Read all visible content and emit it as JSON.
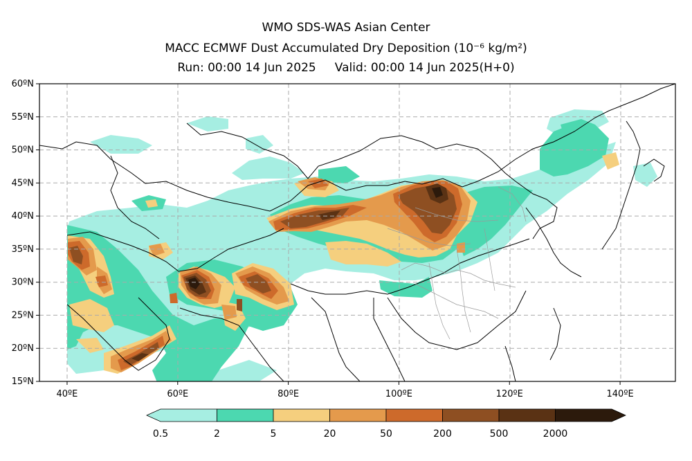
{
  "title": {
    "line1": "WMO SDS-WAS Asian Center",
    "line2": "MACC ECMWF Dust Accumulated Dry Deposition (10⁻⁶ kg/m²)",
    "line3": "Run: 00:00 14 Jun 2025     Valid: 00:00 14 Jun 2025(H+0)"
  },
  "map": {
    "lon_range": [
      35,
      150
    ],
    "lat_range": [
      15,
      60
    ],
    "lat_ticks": [
      "15ºN",
      "20ºN",
      "25ºN",
      "30ºN",
      "35ºN",
      "40ºN",
      "45ºN",
      "50ºN",
      "55ºN",
      "60ºN"
    ],
    "lon_ticks": [
      "40ºE",
      "60ºE",
      "80ºE",
      "100ºE",
      "120ºE",
      "140ºE"
    ],
    "grid": true
  },
  "colorbar": {
    "colors": [
      "#a6eee2",
      "#4cd8b0",
      "#f5cf7e",
      "#e49a4c",
      "#cd6a2b",
      "#8e4f22",
      "#5a3214",
      "#2c1a0c"
    ],
    "labels": [
      "0.5",
      "2",
      "5",
      "20",
      "50",
      "200",
      "500",
      "2000"
    ]
  }
}
